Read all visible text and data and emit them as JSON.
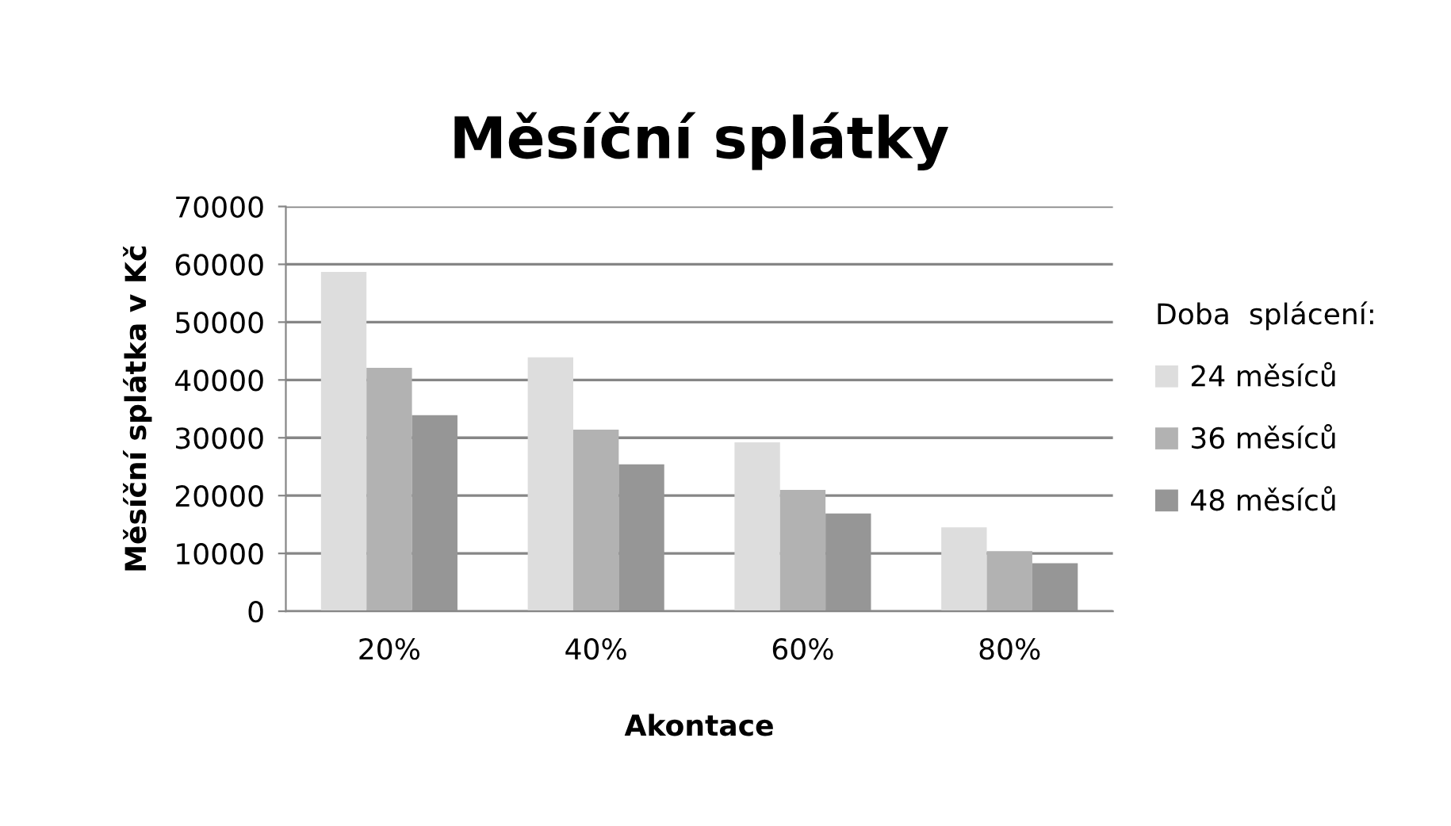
{
  "chart_data": {
    "type": "bar",
    "title": "Měsíční splátky",
    "xlabel": "Akontace",
    "ylabel": "Měsíční splátka v Kč",
    "legend_title": "Doba  splácení:",
    "categories": [
      "20%",
      "40%",
      "60%",
      "80%"
    ],
    "series": [
      {
        "name": "24 měsíců",
        "color": "#dddddd",
        "values": [
          58700,
          43900,
          29200,
          14500
        ]
      },
      {
        "name": "36 měsíců",
        "color": "#b2b2b2",
        "values": [
          42100,
          31400,
          21000,
          10400
        ]
      },
      {
        "name": "48 měsíců",
        "color": "#969696",
        "values": [
          33900,
          25400,
          16900,
          8300
        ]
      }
    ],
    "ylim": [
      0,
      70000
    ],
    "yticks": [
      0,
      10000,
      20000,
      30000,
      40000,
      50000,
      60000,
      70000
    ],
    "grid": "y",
    "legend": "right"
  }
}
